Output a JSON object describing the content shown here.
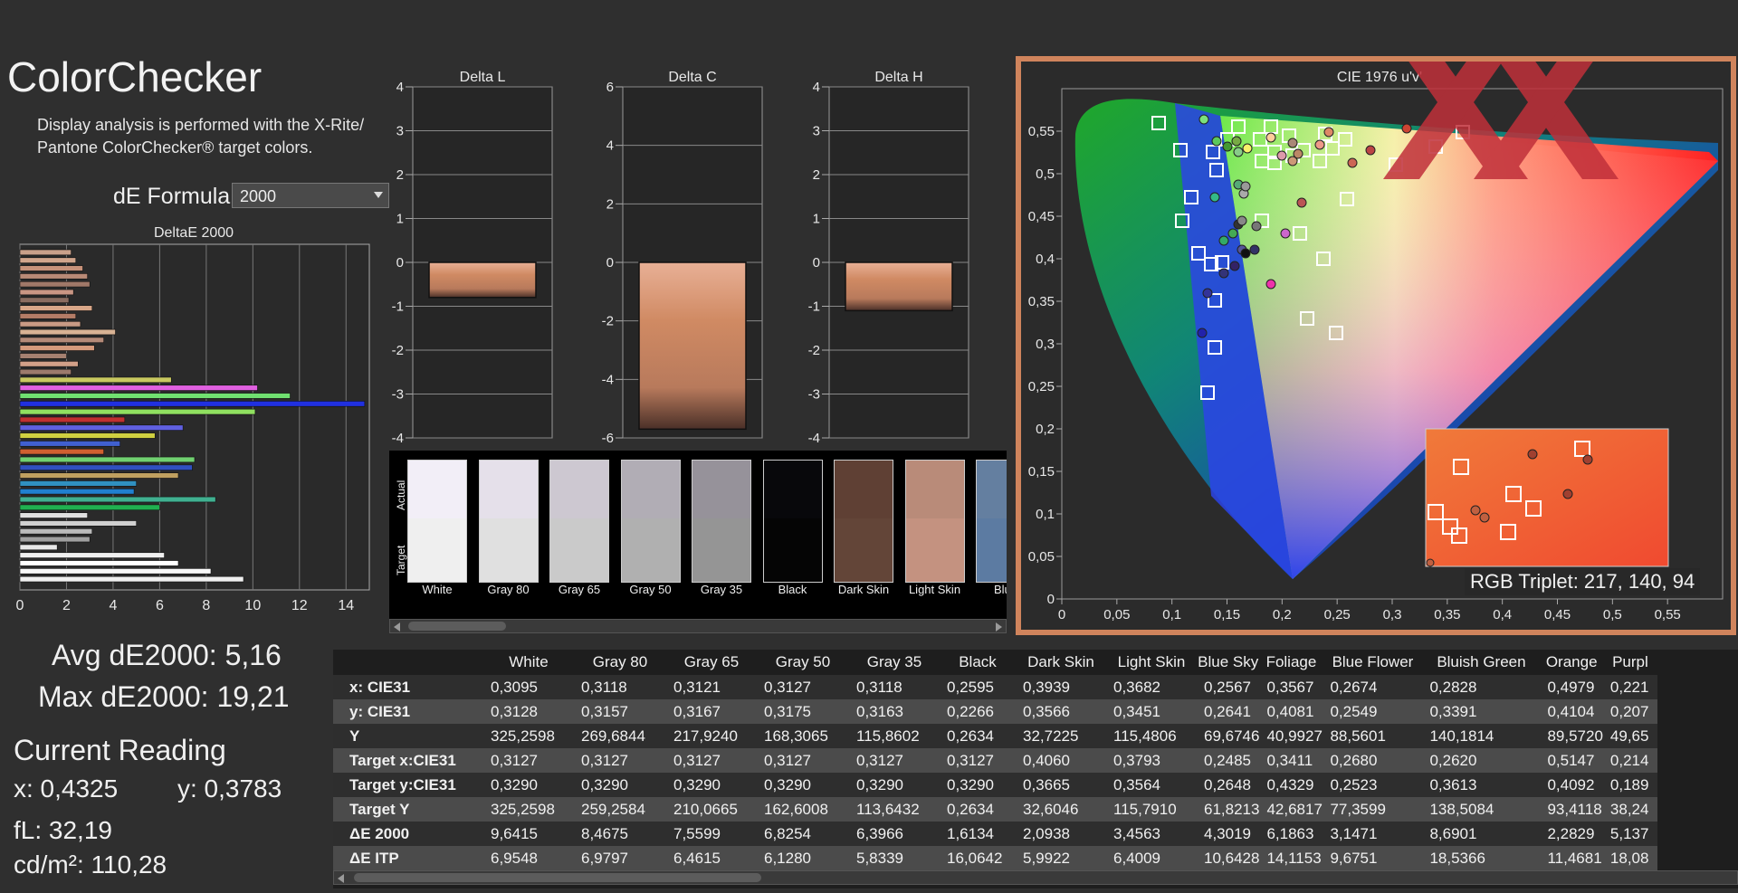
{
  "header": {
    "title": "ColorChecker",
    "description": "Display analysis is performed with the X-Rite/ Pantone ColorChecker® target colors.",
    "formula_label": "dE Formula:",
    "formula_value": "2000"
  },
  "deltae_chart": {
    "title": "DeltaE 2000",
    "ticks": [
      "0",
      "2",
      "4",
      "6",
      "8",
      "10",
      "12",
      "14"
    ]
  },
  "delta_charts": [
    {
      "title": "Delta L",
      "ticks": [
        "4",
        "3",
        "2",
        "1",
        "0",
        "-1",
        "-2",
        "-3",
        "-4"
      ],
      "ymin": -4,
      "ymax": 4,
      "value": -0.8
    },
    {
      "title": "Delta C",
      "ticks": [
        "6",
        "4",
        "2",
        "0",
        "-2",
        "-4",
        "-6"
      ],
      "ymin": -6,
      "ymax": 6,
      "value": -5.7
    },
    {
      "title": "Delta H",
      "ticks": [
        "4",
        "3",
        "2",
        "1",
        "0",
        "-1",
        "-2",
        "-3",
        "-4"
      ],
      "ymin": -4,
      "ymax": 4,
      "value": -1.1
    }
  ],
  "swatches": {
    "actual_label": "Actual",
    "target_label": "Target",
    "items": [
      {
        "name": "White",
        "actual": "#f2eef7",
        "target": "#efefef"
      },
      {
        "name": "Gray 80",
        "actual": "#e5e0ea",
        "target": "#e0e0e0"
      },
      {
        "name": "Gray 65",
        "actual": "#cdc8d1",
        "target": "#cacaca"
      },
      {
        "name": "Gray 50",
        "actual": "#b1adb5",
        "target": "#b0b0b0"
      },
      {
        "name": "Gray 35",
        "actual": "#96929a",
        "target": "#959595"
      },
      {
        "name": "Black",
        "actual": "#08080b",
        "target": "#050505"
      },
      {
        "name": "Dark Skin",
        "actual": "#5f4034",
        "target": "#634538"
      },
      {
        "name": "Light Skin",
        "actual": "#b98b79",
        "target": "#c49280"
      },
      {
        "name": "Blue",
        "actual": "#647fa0",
        "target": "#5c7ba2"
      }
    ]
  },
  "stats": {
    "avg": "Avg dE2000: 5,16",
    "max": "Max dE2000: 19,21",
    "current_reading": "Current Reading",
    "x": "x: 0,4325",
    "y": "y: 0,3783",
    "fl": "fL: 32,19",
    "cd": "cd/m²: 110,28"
  },
  "cie": {
    "title": "CIE 1976 u'v'",
    "xticks": [
      "0",
      "0,05",
      "0,1",
      "0,15",
      "0,2",
      "0,25",
      "0,3",
      "0,35",
      "0,4",
      "0,45",
      "0,5",
      "0,55"
    ],
    "yticks": [
      "0,55",
      "0,5",
      "0,45",
      "0,4",
      "0,35",
      "0,3",
      "0,25",
      "0,2",
      "0,15",
      "0,1",
      "0,05",
      "0"
    ],
    "rgb_triplet": "RGB Triplet: 217, 140, 94"
  },
  "table": {
    "columns": [
      "",
      "White",
      "Gray 80",
      "Gray 65",
      "Gray 50",
      "Gray 35",
      "Black",
      "Dark Skin",
      "Light Skin",
      "Blue Sky",
      "Foliage",
      "Blue Flower",
      "Bluish Green",
      "Orange",
      "Purpl"
    ],
    "rows": [
      {
        "label": "x: CIE31",
        "values": [
          "0,3095",
          "0,3118",
          "0,3121",
          "0,3127",
          "0,3118",
          "0,2595",
          "0,3939",
          "0,3682",
          "0,2567",
          "0,3567",
          "0,2674",
          "0,2828",
          "0,4979",
          "0,221"
        ]
      },
      {
        "label": "y: CIE31",
        "values": [
          "0,3128",
          "0,3157",
          "0,3167",
          "0,3175",
          "0,3163",
          "0,2266",
          "0,3566",
          "0,3451",
          "0,2641",
          "0,4081",
          "0,2549",
          "0,3391",
          "0,4104",
          "0,207"
        ]
      },
      {
        "label": "Y",
        "values": [
          "325,2598",
          "269,6844",
          "217,9240",
          "168,3065",
          "115,8602",
          "0,2634",
          "32,7225",
          "115,4806",
          "69,6746",
          "40,9927",
          "88,5601",
          "140,1814",
          "89,5720",
          "49,65"
        ]
      },
      {
        "label": "Target x:CIE31",
        "values": [
          "0,3127",
          "0,3127",
          "0,3127",
          "0,3127",
          "0,3127",
          "0,3127",
          "0,4060",
          "0,3793",
          "0,2485",
          "0,3411",
          "0,2680",
          "0,2620",
          "0,5147",
          "0,214"
        ]
      },
      {
        "label": "Target y:CIE31",
        "values": [
          "0,3290",
          "0,3290",
          "0,3290",
          "0,3290",
          "0,3290",
          "0,3290",
          "0,3665",
          "0,3564",
          "0,2648",
          "0,4329",
          "0,2523",
          "0,3613",
          "0,4092",
          "0,189"
        ]
      },
      {
        "label": "Target Y",
        "values": [
          "325,2598",
          "259,2584",
          "210,0665",
          "162,6008",
          "113,6432",
          "0,2634",
          "32,6046",
          "115,7910",
          "61,8213",
          "42,6817",
          "77,3599",
          "138,5084",
          "93,4118",
          "38,24"
        ]
      },
      {
        "label": "ΔE 2000",
        "values": [
          "9,6415",
          "8,4675",
          "7,5599",
          "6,8254",
          "6,3966",
          "1,6134",
          "2,0938",
          "3,4563",
          "4,3019",
          "6,1863",
          "3,1471",
          "8,6901",
          "2,2829",
          "5,137"
        ]
      },
      {
        "label": "ΔE ITP",
        "values": [
          "6,9548",
          "6,9797",
          "6,4615",
          "6,1280",
          "5,8339",
          "16,0642",
          "5,9922",
          "6,4009",
          "10,6428",
          "14,1153",
          "9,6751",
          "18,5366",
          "11,4681",
          "18,08"
        ]
      }
    ]
  }
}
